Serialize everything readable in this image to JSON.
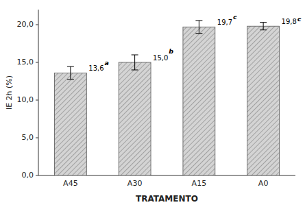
{
  "chart_data": {
    "type": "bar",
    "categories": [
      "A45",
      "A30",
      "A15",
      "A0"
    ],
    "values": [
      13.6,
      15.0,
      19.7,
      19.8
    ],
    "errors": [
      0.85,
      1.0,
      0.85,
      0.5
    ],
    "value_labels": [
      "13,6",
      "15,0",
      "19,7",
      "19,8"
    ],
    "letters": [
      "a",
      "b",
      "c",
      "c"
    ],
    "data_labels": true,
    "color": "#d4d4d4",
    "xlabel": "TRATAMENTO",
    "ylabel": "IE 2h (%)",
    "ylim": [
      0,
      22.0
    ],
    "yticks": [
      {
        "value": 0.0,
        "label": "0,0"
      },
      {
        "value": 5.0,
        "label": "5,0"
      },
      {
        "value": 10.0,
        "label": "10,0"
      },
      {
        "value": 15.0,
        "label": "15,0"
      },
      {
        "value": 20.0,
        "label": "20,0"
      }
    ],
    "grid": false
  }
}
